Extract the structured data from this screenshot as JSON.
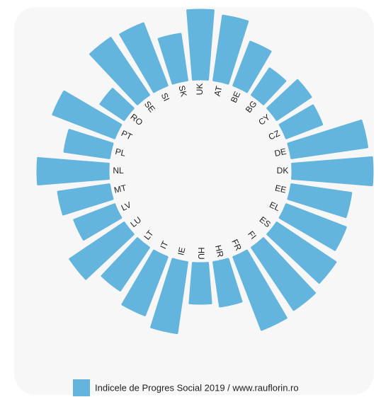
{
  "chart_data": {
    "type": "radial-bar",
    "categories": [
      "UK",
      "AT",
      "BE",
      "BG",
      "CY",
      "CZ",
      "DE",
      "DK",
      "EE",
      "EL",
      "ES",
      "FI",
      "FR",
      "HR",
      "HU",
      "IE",
      "IT",
      "LT",
      "LU",
      "LV",
      "MT",
      "NL",
      "PL",
      "PT",
      "RO",
      "SE",
      "SI",
      "SK"
    ],
    "values": [
      89.6,
      88.4,
      83.2,
      79,
      81.6,
      80.8,
      91.6,
      92.6,
      87,
      88,
      90,
      91.2,
      92,
      82.6,
      81.4,
      90.2,
      87.6,
      84.6,
      88.4,
      82.2,
      84.6,
      90,
      82.8,
      88.6,
      78,
      89.4,
      88.8,
      83.2
    ],
    "color": "#64b5dd",
    "ylim": [
      70,
      94
    ],
    "legend_label": "Indicele de Progres Social 2019 / www.rauflorin.ro"
  }
}
